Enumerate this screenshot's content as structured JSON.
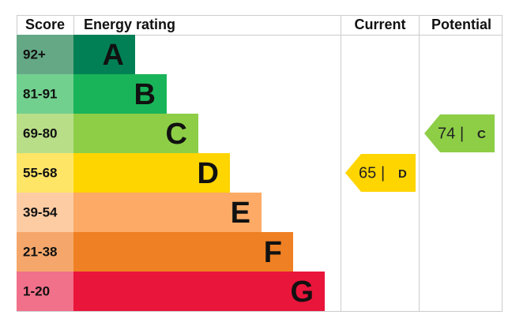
{
  "header": {
    "score": "Score",
    "rating": "Energy rating",
    "current": "Current",
    "potential": "Potential"
  },
  "bands": [
    {
      "score": "92+",
      "letter": "A",
      "color": "#008054",
      "score_color": "#65a886"
    },
    {
      "score": "81-91",
      "letter": "B",
      "color": "#19b459",
      "score_color": "#72d08f"
    },
    {
      "score": "69-80",
      "letter": "C",
      "color": "#8dce46",
      "score_color": "#b8de88"
    },
    {
      "score": "55-68",
      "letter": "D",
      "color": "#ffd500",
      "score_color": "#ffe566"
    },
    {
      "score": "39-54",
      "letter": "E",
      "color": "#fcaa65",
      "score_color": "#fdcca3"
    },
    {
      "score": "21-38",
      "letter": "F",
      "color": "#ef8023",
      "score_color": "#f5a76b"
    },
    {
      "score": "1-20",
      "letter": "G",
      "color": "#e9153b",
      "score_color": "#f1708a"
    }
  ],
  "separator": "|",
  "current": {
    "value": 65,
    "letter": "D"
  },
  "potential": {
    "value": 74,
    "letter": "C"
  }
}
